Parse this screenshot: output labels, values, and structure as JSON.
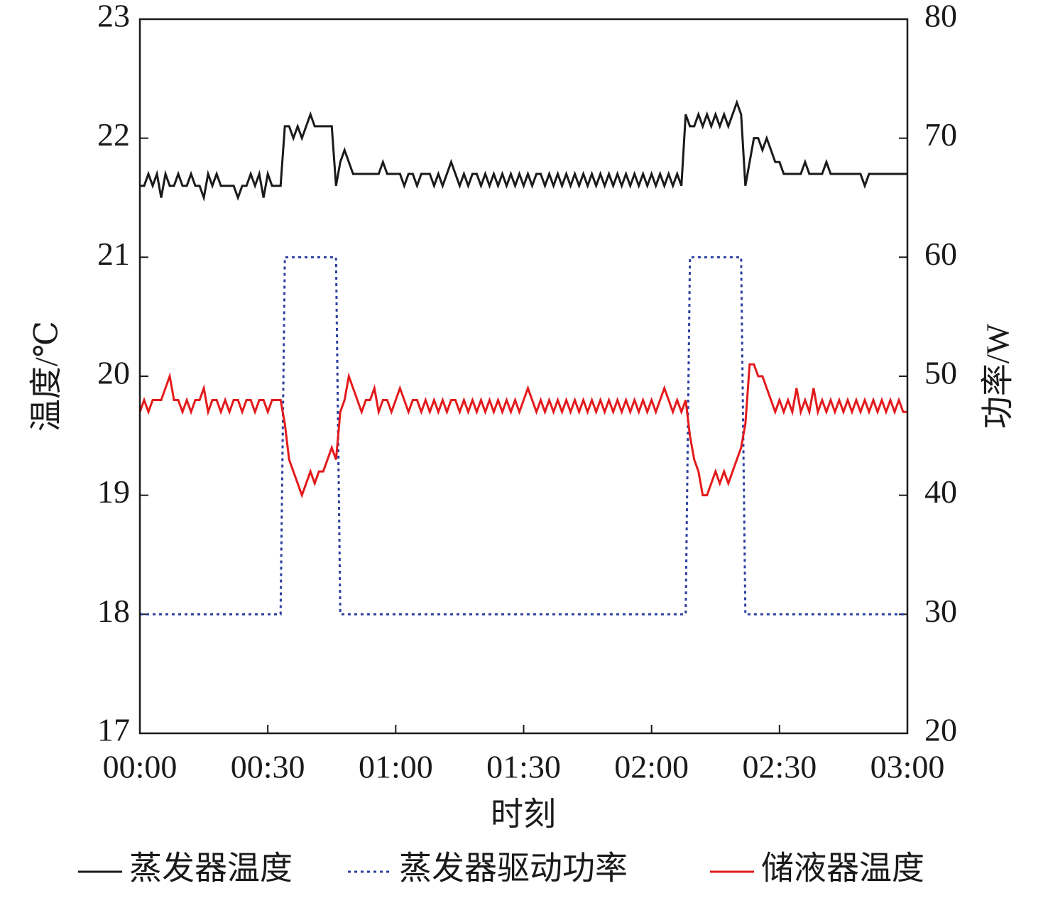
{
  "chart_data": {
    "type": "line",
    "xlabel": "时刻",
    "ylabel": "温度/℃",
    "y2label": "功率/W",
    "x": [
      0,
      1,
      2,
      3,
      4,
      5,
      6,
      7,
      8,
      9,
      10,
      11,
      12,
      13,
      14,
      15,
      16,
      17,
      18,
      19,
      20,
      21,
      22,
      23,
      24,
      25,
      26,
      27,
      28,
      29,
      30,
      31,
      32,
      33,
      34,
      35,
      36,
      37,
      38,
      39,
      40,
      41,
      42,
      43,
      44,
      45,
      46,
      47,
      48,
      49,
      50,
      51,
      52,
      53,
      54,
      55,
      56,
      57,
      58,
      59,
      60,
      61,
      62,
      63,
      64,
      65,
      66,
      67,
      68,
      69,
      70,
      71,
      72,
      73,
      74,
      75,
      76,
      77,
      78,
      79,
      80,
      81,
      82,
      83,
      84,
      85,
      86,
      87,
      88,
      89,
      90,
      91,
      92,
      93,
      94,
      95,
      96,
      97,
      98,
      99,
      100,
      101,
      102,
      103,
      104,
      105,
      106,
      107,
      108,
      109,
      110,
      111,
      112,
      113,
      114,
      115,
      116,
      117,
      118,
      119,
      120,
      121,
      122,
      123,
      124,
      125,
      126,
      127,
      128,
      129,
      130,
      131,
      132,
      133,
      134,
      135,
      136,
      137,
      138,
      139,
      140,
      141,
      142,
      143,
      144,
      145,
      146,
      147,
      148,
      149,
      150,
      151,
      152,
      153,
      154,
      155,
      156,
      157,
      158,
      159,
      160,
      161,
      162,
      163,
      164,
      165,
      166,
      167,
      168,
      169,
      170,
      171,
      172,
      173,
      174,
      175,
      176,
      177,
      178,
      179,
      180
    ],
    "xlim": [
      0,
      180
    ],
    "xticks": [
      {
        "value": 0,
        "label": "00:00"
      },
      {
        "value": 30,
        "label": "00:30"
      },
      {
        "value": 60,
        "label": "01:00"
      },
      {
        "value": 90,
        "label": "01:30"
      },
      {
        "value": 120,
        "label": "02:00"
      },
      {
        "value": 150,
        "label": "02:30"
      },
      {
        "value": 180,
        "label": "03:00"
      }
    ],
    "ylim": [
      17,
      23
    ],
    "yticks": [
      17,
      18,
      19,
      20,
      21,
      22,
      23
    ],
    "y2lim": [
      20,
      80
    ],
    "y2ticks": [
      20,
      30,
      40,
      50,
      60,
      70,
      80
    ],
    "series": [
      {
        "name": "蒸发器温度",
        "color": "#1a1a1a",
        "dash": "none",
        "values": [
          21.6,
          21.6,
          21.7,
          21.6,
          21.7,
          21.5,
          21.7,
          21.6,
          21.6,
          21.7,
          21.6,
          21.6,
          21.7,
          21.6,
          21.6,
          21.5,
          21.7,
          21.6,
          21.7,
          21.6,
          21.6,
          21.6,
          21.6,
          21.5,
          21.6,
          21.6,
          21.7,
          21.6,
          21.7,
          21.5,
          21.7,
          21.6,
          21.6,
          21.6,
          22.1,
          22.1,
          22.0,
          22.1,
          22.0,
          22.1,
          22.2,
          22.1,
          22.1,
          22.1,
          22.1,
          22.1,
          21.6,
          21.8,
          21.9,
          21.8,
          21.7,
          21.7,
          21.7,
          21.7,
          21.7,
          21.7,
          21.7,
          21.8,
          21.7,
          21.7,
          21.7,
          21.7,
          21.6,
          21.7,
          21.7,
          21.6,
          21.7,
          21.7,
          21.7,
          21.6,
          21.7,
          21.6,
          21.7,
          21.8,
          21.7,
          21.6,
          21.7,
          21.6,
          21.7,
          21.7,
          21.6,
          21.7,
          21.6,
          21.7,
          21.6,
          21.7,
          21.6,
          21.7,
          21.6,
          21.7,
          21.6,
          21.7,
          21.6,
          21.7,
          21.7,
          21.6,
          21.7,
          21.6,
          21.7,
          21.6,
          21.7,
          21.6,
          21.7,
          21.6,
          21.7,
          21.6,
          21.7,
          21.6,
          21.7,
          21.6,
          21.7,
          21.6,
          21.7,
          21.6,
          21.7,
          21.6,
          21.7,
          21.6,
          21.7,
          21.6,
          21.7,
          21.6,
          21.7,
          21.6,
          21.7,
          21.6,
          21.7,
          21.6,
          22.2,
          22.1,
          22.1,
          22.2,
          22.1,
          22.2,
          22.1,
          22.2,
          22.1,
          22.2,
          22.1,
          22.2,
          22.3,
          22.2,
          21.6,
          21.8,
          22.0,
          22.0,
          21.9,
          22.0,
          21.9,
          21.8,
          21.8,
          21.7,
          21.7,
          21.7,
          21.7,
          21.7,
          21.8,
          21.7,
          21.7,
          21.7,
          21.7,
          21.8,
          21.7,
          21.7,
          21.7,
          21.7,
          21.7,
          21.7,
          21.7,
          21.7,
          21.6,
          21.7,
          21.7,
          21.7,
          21.7,
          21.7,
          21.7,
          21.7,
          21.7,
          21.7,
          21.7
        ]
      },
      {
        "name": "蒸发器驱动功率",
        "color": "#2b3f9e",
        "dash": "4 5",
        "axis": "y2",
        "values": [
          30,
          30,
          30,
          30,
          30,
          30,
          30,
          30,
          30,
          30,
          30,
          30,
          30,
          30,
          30,
          30,
          30,
          30,
          30,
          30,
          30,
          30,
          30,
          30,
          30,
          30,
          30,
          30,
          30,
          30,
          30,
          30,
          30,
          30,
          60,
          60,
          60,
          60,
          60,
          60,
          60,
          60,
          60,
          60,
          60,
          60,
          60,
          30,
          30,
          30,
          30,
          30,
          30,
          30,
          30,
          30,
          30,
          30,
          30,
          30,
          30,
          30,
          30,
          30,
          30,
          30,
          30,
          30,
          30,
          30,
          30,
          30,
          30,
          30,
          30,
          30,
          30,
          30,
          30,
          30,
          30,
          30,
          30,
          30,
          30,
          30,
          30,
          30,
          30,
          30,
          30,
          30,
          30,
          30,
          30,
          30,
          30,
          30,
          30,
          30,
          30,
          30,
          30,
          30,
          30,
          30,
          30,
          30,
          30,
          30,
          30,
          30,
          30,
          30,
          30,
          30,
          30,
          30,
          30,
          30,
          30,
          30,
          30,
          30,
          30,
          30,
          30,
          30,
          30,
          60,
          60,
          60,
          60,
          60,
          60,
          60,
          60,
          60,
          60,
          60,
          60,
          60,
          30,
          30,
          30,
          30,
          30,
          30,
          30,
          30,
          30,
          30,
          30,
          30,
          30,
          30,
          30,
          30,
          30,
          30,
          30,
          30,
          30,
          30,
          30,
          30,
          30,
          30,
          30,
          30,
          30,
          30,
          30,
          30,
          30,
          30,
          30,
          30,
          30,
          30,
          30
        ]
      },
      {
        "name": "储液器温度",
        "color": "#e31a1c",
        "dash": "none",
        "values": [
          19.7,
          19.8,
          19.7,
          19.8,
          19.8,
          19.8,
          19.9,
          20.0,
          19.8,
          19.8,
          19.7,
          19.8,
          19.7,
          19.8,
          19.8,
          19.9,
          19.7,
          19.8,
          19.8,
          19.7,
          19.8,
          19.7,
          19.8,
          19.8,
          19.7,
          19.8,
          19.8,
          19.7,
          19.8,
          19.8,
          19.7,
          19.8,
          19.8,
          19.8,
          19.6,
          19.3,
          19.2,
          19.1,
          19.0,
          19.1,
          19.2,
          19.1,
          19.2,
          19.2,
          19.3,
          19.4,
          19.3,
          19.7,
          19.8,
          20.0,
          19.9,
          19.8,
          19.7,
          19.8,
          19.8,
          19.9,
          19.7,
          19.8,
          19.8,
          19.7,
          19.8,
          19.9,
          19.8,
          19.7,
          19.8,
          19.8,
          19.7,
          19.8,
          19.7,
          19.8,
          19.7,
          19.8,
          19.7,
          19.8,
          19.8,
          19.7,
          19.8,
          19.7,
          19.8,
          19.7,
          19.8,
          19.7,
          19.8,
          19.7,
          19.8,
          19.7,
          19.8,
          19.7,
          19.8,
          19.7,
          19.8,
          19.9,
          19.8,
          19.7,
          19.8,
          19.7,
          19.8,
          19.7,
          19.8,
          19.7,
          19.8,
          19.7,
          19.8,
          19.7,
          19.8,
          19.7,
          19.8,
          19.7,
          19.8,
          19.7,
          19.8,
          19.7,
          19.8,
          19.7,
          19.8,
          19.7,
          19.8,
          19.7,
          19.8,
          19.7,
          19.8,
          19.7,
          19.8,
          19.9,
          19.8,
          19.7,
          19.8,
          19.7,
          19.8,
          19.5,
          19.3,
          19.2,
          19.0,
          19.0,
          19.1,
          19.2,
          19.1,
          19.2,
          19.1,
          19.2,
          19.3,
          19.4,
          19.6,
          20.1,
          20.1,
          20.0,
          20.0,
          19.9,
          19.8,
          19.7,
          19.8,
          19.7,
          19.8,
          19.7,
          19.9,
          19.7,
          19.8,
          19.7,
          19.9,
          19.7,
          19.8,
          19.7,
          19.8,
          19.7,
          19.8,
          19.7,
          19.8,
          19.7,
          19.8,
          19.7,
          19.8,
          19.7,
          19.8,
          19.7,
          19.8,
          19.7,
          19.8,
          19.7,
          19.8,
          19.7,
          19.7
        ]
      }
    ]
  }
}
